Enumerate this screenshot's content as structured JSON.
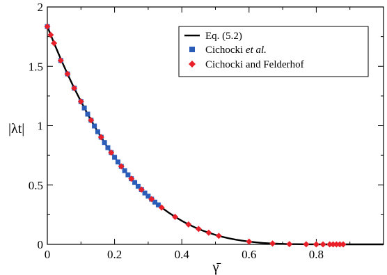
{
  "chart_data": {
    "type": "line",
    "title": "",
    "xlabel": "γ̄",
    "ylabel": "|λt|",
    "xlim": [
      0,
      1.0
    ],
    "ylim": [
      0,
      2.0
    ],
    "x_ticks": [
      "0",
      "0.2",
      "0.4",
      "0.6",
      "0.8"
    ],
    "x_tick_values": [
      0,
      0.2,
      0.4,
      0.6,
      0.8
    ],
    "y_ticks": [
      "0",
      "0.5",
      "1",
      "1.5",
      "2"
    ],
    "y_tick_values": [
      0,
      0.5,
      1.0,
      1.5,
      2.0
    ],
    "grid": false,
    "legend": {
      "placement": "top-right",
      "entries": [
        {
          "label": "Eq. (5.2)",
          "marker": "line",
          "color": "#000000"
        },
        {
          "label_prefix": "Cichocki ",
          "label_italic": "et al.",
          "marker": "square",
          "color": "#2a5cb8"
        },
        {
          "label": "Cichocki and Felderhof",
          "marker": "diamond",
          "color": "#e8202a"
        }
      ]
    },
    "series": [
      {
        "name": "Eq. (5.2)",
        "kind": "line",
        "color": "#000000",
        "x": [
          0,
          0.02,
          0.04,
          0.06,
          0.08,
          0.1,
          0.12,
          0.14,
          0.16,
          0.18,
          0.2,
          0.22,
          0.24,
          0.26,
          0.28,
          0.3,
          0.32,
          0.34,
          0.36,
          0.38,
          0.4,
          0.42,
          0.44,
          0.46,
          0.48,
          0.5,
          0.52,
          0.54,
          0.56,
          0.58,
          0.6,
          0.62,
          0.64,
          0.66,
          0.68,
          0.7,
          0.72,
          0.74,
          0.76,
          0.78,
          0.8,
          0.82,
          0.84,
          0.86,
          0.88,
          0.9,
          0.92,
          0.94,
          0.96,
          0.98,
          1.0
        ],
        "y": [
          1.835,
          1.695,
          1.562,
          1.436,
          1.316,
          1.204,
          1.097,
          0.997,
          0.903,
          0.815,
          0.733,
          0.657,
          0.586,
          0.521,
          0.461,
          0.406,
          0.356,
          0.31,
          0.269,
          0.232,
          0.198,
          0.168,
          0.142,
          0.118,
          0.098,
          0.08,
          0.064,
          0.051,
          0.04,
          0.031,
          0.023,
          0.017,
          0.012,
          0.008,
          0.006,
          0.004,
          0.002,
          0.0015,
          0.001,
          0.0006,
          0.0003,
          0.0002,
          0.0001,
          0.0001,
          0,
          0,
          0,
          0,
          0,
          0,
          0
        ]
      },
      {
        "name": "Cichocki et al.",
        "kind": "square",
        "color": "#2a5cb8",
        "x": [
          0.0,
          0.04,
          0.06,
          0.08,
          0.1,
          0.11,
          0.12,
          0.13,
          0.14,
          0.15,
          0.16,
          0.17,
          0.18,
          0.19,
          0.2,
          0.21,
          0.22,
          0.23,
          0.24,
          0.25,
          0.26,
          0.27,
          0.28,
          0.29,
          0.3,
          0.31,
          0.32,
          0.33
        ],
        "y": [
          1.835,
          1.549,
          1.436,
          1.316,
          1.204,
          1.149,
          1.097,
          1.046,
          0.997,
          0.949,
          0.903,
          0.858,
          0.815,
          0.773,
          0.733,
          0.694,
          0.657,
          0.621,
          0.586,
          0.553,
          0.521,
          0.49,
          0.461,
          0.433,
          0.406,
          0.381,
          0.356,
          0.333
        ]
      },
      {
        "name": "Cichocki and Felderhof",
        "kind": "diamond",
        "color": "#e8202a",
        "x": [
          0.0,
          0.01,
          0.02,
          0.04,
          0.06,
          0.08,
          0.1,
          0.13,
          0.16,
          0.19,
          0.22,
          0.25,
          0.28,
          0.31,
          0.34,
          0.38,
          0.42,
          0.45,
          0.48,
          0.51,
          0.6,
          0.67,
          0.72,
          0.77,
          0.8,
          0.82,
          0.84,
          0.85,
          0.86,
          0.87,
          0.88
        ],
        "y": [
          1.835,
          1.765,
          1.695,
          1.549,
          1.436,
          1.316,
          1.204,
          1.046,
          0.903,
          0.773,
          0.657,
          0.553,
          0.461,
          0.381,
          0.31,
          0.232,
          0.168,
          0.13,
          0.098,
          0.072,
          0.023,
          0.007,
          0.002,
          0.001,
          0.0003,
          0.0002,
          0.0001,
          0.0001,
          0.0001,
          0,
          0
        ]
      }
    ]
  }
}
